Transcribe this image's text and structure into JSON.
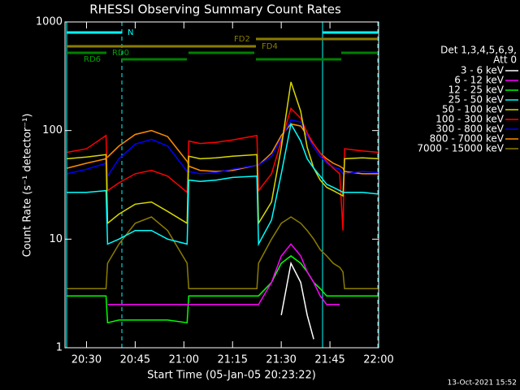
{
  "chart_data": {
    "type": "line",
    "title": "RHESSI Observing Summary Count Rates",
    "xlabel": "Start Time (05-Jan-05 20:23:22)",
    "ylabel": "Count Rate (s⁻¹ detector⁻¹)",
    "footer": "13-Oct-2021 15:52",
    "legend_title": [
      "Det 1,3,4,5,6,9,",
      "Att 0"
    ],
    "annotations": [
      "N",
      "FD2",
      "FD4",
      "RD0",
      "RD6"
    ],
    "log_y": true,
    "xlim": [
      1223.37,
      1320
    ],
    "ylim": [
      1,
      1000
    ],
    "xticks": [
      {
        "value": 1230,
        "label": "20:30"
      },
      {
        "value": 1245,
        "label": "20:45"
      },
      {
        "value": 1260,
        "label": "21:00"
      },
      {
        "value": 1275,
        "label": "21:15"
      },
      {
        "value": 1290,
        "label": "21:30"
      },
      {
        "value": 1305,
        "label": "21:45"
      },
      {
        "value": 1320,
        "label": "22:00"
      }
    ],
    "yticks": [
      1,
      10,
      100,
      1000
    ],
    "x": [
      1224,
      1230,
      1236,
      1236.5,
      1240,
      1245,
      1250,
      1255,
      1261,
      1261.5,
      1265,
      1270,
      1275,
      1282.5,
      1283,
      1287,
      1290,
      1293,
      1296,
      1298,
      1300,
      1302,
      1304,
      1306,
      1308,
      1309,
      1309.5,
      1315,
      1320
    ],
    "series": [
      {
        "name": "3 - 6 keV",
        "color": "#ffffff",
        "values": [
          null,
          null,
          null,
          null,
          null,
          null,
          null,
          null,
          null,
          null,
          null,
          null,
          null,
          null,
          null,
          null,
          2,
          6,
          4,
          2,
          1.2,
          null,
          null,
          null,
          null,
          null,
          null,
          null,
          null
        ]
      },
      {
        "name": "6 - 12 keV",
        "color": "#ff00ff",
        "values": [
          null,
          null,
          null,
          2.5,
          2.5,
          2.5,
          2.5,
          2.5,
          2.5,
          2.5,
          2.5,
          2.5,
          2.5,
          2.5,
          2.5,
          4,
          7,
          9,
          7,
          5,
          4,
          3,
          2.5,
          2.5,
          2.5,
          null,
          null,
          null,
          null
        ]
      },
      {
        "name": "12 - 25 keV",
        "color": "#00ff00",
        "values": [
          3,
          3,
          3,
          1.7,
          1.8,
          1.8,
          1.8,
          1.8,
          1.7,
          3,
          3,
          3,
          3,
          3,
          3,
          4,
          6,
          7,
          6,
          5,
          4,
          3.5,
          3,
          3,
          3,
          3,
          3,
          3,
          3
        ]
      },
      {
        "name": "25 - 50 keV",
        "color": "#00ffff",
        "values": [
          27,
          27,
          28,
          9,
          10,
          12,
          12,
          10,
          9,
          35,
          34,
          35,
          37,
          38,
          9,
          15,
          40,
          115,
          80,
          55,
          45,
          38,
          32,
          30,
          28,
          27,
          27,
          27,
          26
        ]
      },
      {
        "name": "50 - 100 keV",
        "color": "#d8d800",
        "values": [
          55,
          57,
          60,
          14,
          17,
          21,
          22,
          18,
          14,
          58,
          55,
          56,
          58,
          60,
          14,
          22,
          70,
          280,
          150,
          70,
          45,
          35,
          30,
          28,
          26,
          25,
          55,
          56,
          55
        ]
      },
      {
        "name": "100 - 300 keV",
        "color": "#ff0000",
        "values": [
          63,
          68,
          90,
          28,
          33,
          40,
          43,
          38,
          27,
          80,
          76,
          78,
          82,
          90,
          28,
          40,
          80,
          160,
          130,
          95,
          75,
          62,
          52,
          45,
          40,
          12,
          68,
          65,
          63
        ]
      },
      {
        "name": "300 - 800 keV",
        "color": "#0000ff",
        "values": [
          40,
          44,
          50,
          38,
          55,
          75,
          83,
          72,
          42,
          42,
          40,
          41,
          44,
          48,
          48,
          58,
          85,
          125,
          120,
          90,
          70,
          58,
          50,
          46,
          44,
          40,
          40,
          42,
          41
        ]
      },
      {
        "name": "800 - 7000 keV",
        "color": "#ff8c00",
        "values": [
          45,
          50,
          55,
          57,
          72,
          92,
          100,
          88,
          52,
          47,
          43,
          42,
          43,
          48,
          48,
          62,
          90,
          115,
          110,
          90,
          75,
          62,
          55,
          50,
          47,
          45,
          42,
          40,
          40
        ]
      },
      {
        "name": "7000 - 15000 keV",
        "color": "#8b7d00",
        "values": [
          3.5,
          3.5,
          3.5,
          6,
          9,
          14,
          16,
          12,
          6,
          3.5,
          3.5,
          3.5,
          3.5,
          3.5,
          6,
          10,
          14,
          16,
          14,
          12,
          10,
          8,
          7,
          6,
          5.5,
          5,
          3.5,
          3.5,
          3.5
        ]
      }
    ]
  }
}
